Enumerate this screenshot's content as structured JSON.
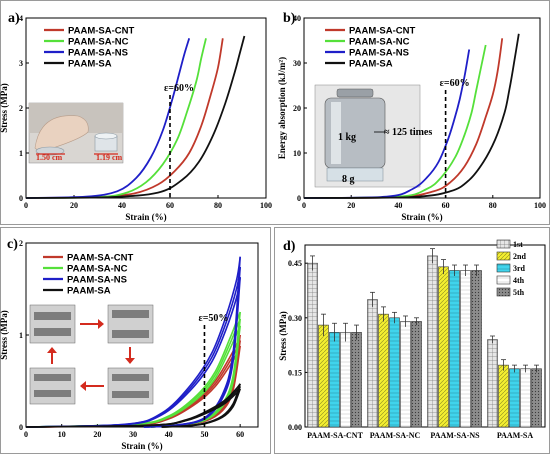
{
  "chart_data": [
    {
      "panel": "a)",
      "type": "line",
      "xlabel": "Strain (%)",
      "ylabel": "Stress (MPa)",
      "xlim": [
        0,
        100
      ],
      "ylim": [
        0,
        4
      ],
      "xticks": [
        "0",
        "20",
        "40",
        "60",
        "80",
        "100"
      ],
      "yticks": [
        "0",
        "1",
        "2",
        "3",
        "4"
      ],
      "annotation": "ε=60%",
      "annotation_x": 60,
      "legend_position": "top-left",
      "photo_labels": [
        "1.50 cm",
        "1.19 cm"
      ],
      "series": [
        {
          "name": "PAAM-SA-CNT",
          "color": "#c0392b",
          "points": [
            [
              0,
              0
            ],
            [
              30,
              0.02
            ],
            [
              45,
              0.1
            ],
            [
              55,
              0.3
            ],
            [
              62,
              0.6
            ],
            [
              68,
              1.0
            ],
            [
              73,
              1.6
            ],
            [
              77,
              2.3
            ],
            [
              80,
              2.9
            ],
            [
              82,
              3.55
            ]
          ]
        },
        {
          "name": "PAAM-SA-NC",
          "color": "#55e03a",
          "points": [
            [
              0,
              0
            ],
            [
              30,
              0.02
            ],
            [
              42,
              0.12
            ],
            [
              50,
              0.35
            ],
            [
              57,
              0.75
            ],
            [
              63,
              1.3
            ],
            [
              67,
              1.9
            ],
            [
              71,
              2.6
            ],
            [
              73,
              3.1
            ],
            [
              75,
              3.55
            ]
          ]
        },
        {
          "name": "PAAM-SA-NS",
          "color": "#1f1fc8",
          "points": [
            [
              0,
              0
            ],
            [
              25,
              0.03
            ],
            [
              38,
              0.15
            ],
            [
              46,
              0.45
            ],
            [
              52,
              0.9
            ],
            [
              57,
              1.5
            ],
            [
              61,
              2.2
            ],
            [
              64,
              2.8
            ],
            [
              66,
              3.2
            ],
            [
              68,
              3.55
            ]
          ]
        },
        {
          "name": "PAAM-SA",
          "color": "#111111",
          "points": [
            [
              0,
              0
            ],
            [
              35,
              0.02
            ],
            [
              55,
              0.12
            ],
            [
              65,
              0.4
            ],
            [
              72,
              0.8
            ],
            [
              78,
              1.4
            ],
            [
              83,
              2.1
            ],
            [
              87,
              2.8
            ],
            [
              89,
              3.2
            ],
            [
              91,
              3.6
            ]
          ]
        }
      ]
    },
    {
      "panel": "b)",
      "type": "line",
      "xlabel": "Strain (%)",
      "ylabel": "Energy absorption (kJ/m²)",
      "xlim": [
        0,
        100
      ],
      "ylim": [
        0,
        40
      ],
      "xticks": [
        "0",
        "20",
        "40",
        "60",
        "80",
        "100"
      ],
      "yticks": [
        "0",
        "10",
        "20",
        "30",
        "40"
      ],
      "annotation": "ε=60%",
      "annotation_x": 60,
      "legend_position": "top-left",
      "photo_labels": [
        "1 kg",
        "8 g",
        "≈ 125 times"
      ],
      "series": [
        {
          "name": "PAAM-SA-CNT",
          "color": "#c0392b",
          "points": [
            [
              0,
              0
            ],
            [
              40,
              0.2
            ],
            [
              55,
              1.5
            ],
            [
              62,
              3.5
            ],
            [
              68,
              7
            ],
            [
              73,
              12
            ],
            [
              77,
              18
            ],
            [
              80,
              23
            ],
            [
              82,
              28
            ],
            [
              84,
              35.5
            ]
          ]
        },
        {
          "name": "PAAM-SA-NC",
          "color": "#55e03a",
          "points": [
            [
              0,
              0
            ],
            [
              40,
              0.3
            ],
            [
              52,
              2
            ],
            [
              58,
              4.5
            ],
            [
              64,
              9
            ],
            [
              68,
              14
            ],
            [
              71,
              19
            ],
            [
              73,
              24
            ],
            [
              75,
              29
            ],
            [
              77,
              34
            ]
          ]
        },
        {
          "name": "PAAM-SA-NS",
          "color": "#1f1fc8",
          "points": [
            [
              0,
              0
            ],
            [
              35,
              0.3
            ],
            [
              46,
              2
            ],
            [
              52,
              4.5
            ],
            [
              57,
              8
            ],
            [
              61,
              13
            ],
            [
              64,
              18
            ],
            [
              66,
              22
            ],
            [
              68,
              27
            ],
            [
              70,
              33
            ]
          ]
        },
        {
          "name": "PAAM-SA",
          "color": "#111111",
          "points": [
            [
              0,
              0
            ],
            [
              45,
              0.2
            ],
            [
              62,
              1.5
            ],
            [
              70,
              4
            ],
            [
              76,
              8
            ],
            [
              81,
              13
            ],
            [
              85,
              19
            ],
            [
              87,
              24
            ],
            [
              89,
              30
            ],
            [
              91,
              36.5
            ]
          ]
        }
      ]
    },
    {
      "panel": "c)",
      "type": "line",
      "xlabel": "Strain (%)",
      "ylabel": "Stress (MPa)",
      "xlim": [
        0,
        65
      ],
      "ylim": [
        0,
        2
      ],
      "xticks": [
        "0",
        "10",
        "20",
        "30",
        "40",
        "50",
        "60"
      ],
      "yticks": [
        "0",
        "1",
        "2"
      ],
      "annotation": "ε=50%",
      "annotation_x": 50,
      "legend_position": "top-left",
      "series": [
        {
          "name": "PAAM-SA-CNT",
          "color": "#c0392b",
          "loading": [
            [
              0,
              0
            ],
            [
              30,
              0.02
            ],
            [
              40,
              0.1
            ],
            [
              48,
              0.3
            ],
            [
              53,
              0.5
            ],
            [
              57,
              0.75
            ],
            [
              59,
              0.9
            ],
            [
              60,
              1.0
            ]
          ],
          "unloading": [
            [
              60,
              1.0
            ],
            [
              58,
              0.45
            ],
            [
              55,
              0.2
            ],
            [
              50,
              0.07
            ],
            [
              42,
              0.02
            ],
            [
              35,
              0
            ]
          ]
        },
        {
          "name": "PAAM-SA-NC",
          "color": "#55e03a",
          "loading": [
            [
              0,
              0
            ],
            [
              30,
              0.03
            ],
            [
              40,
              0.12
            ],
            [
              48,
              0.35
            ],
            [
              53,
              0.6
            ],
            [
              57,
              0.95
            ],
            [
              59,
              1.15
            ],
            [
              60,
              1.25
            ]
          ],
          "unloading": [
            [
              60,
              1.25
            ],
            [
              58,
              0.55
            ],
            [
              55,
              0.25
            ],
            [
              50,
              0.08
            ],
            [
              42,
              0.02
            ],
            [
              35,
              0
            ]
          ]
        },
        {
          "name": "PAAM-SA-NS",
          "color": "#1f1fc8",
          "loading": [
            [
              0,
              0
            ],
            [
              28,
              0.03
            ],
            [
              38,
              0.15
            ],
            [
              46,
              0.45
            ],
            [
              52,
              0.8
            ],
            [
              56,
              1.2
            ],
            [
              59,
              1.6
            ],
            [
              60,
              1.85
            ]
          ],
          "unloading": [
            [
              60,
              1.85
            ],
            [
              58,
              0.8
            ],
            [
              55,
              0.35
            ],
            [
              50,
              0.1
            ],
            [
              42,
              0.02
            ],
            [
              33,
              0
            ]
          ]
        },
        {
          "name": "PAAM-SA",
          "color": "#111111",
          "loading": [
            [
              0,
              0
            ],
            [
              35,
              0.02
            ],
            [
              45,
              0.08
            ],
            [
              52,
              0.2
            ],
            [
              56,
              0.3
            ],
            [
              59,
              0.42
            ],
            [
              60,
              0.47
            ]
          ],
          "unloading": [
            [
              60,
              0.47
            ],
            [
              58,
              0.25
            ],
            [
              55,
              0.12
            ],
            [
              50,
              0.04
            ],
            [
              44,
              0.01
            ],
            [
              38,
              0
            ]
          ]
        }
      ]
    },
    {
      "panel": "d)",
      "type": "bar",
      "ylabel": "Stress (MPa)",
      "ylim": [
        0,
        0.5
      ],
      "yticks": [
        "0.00",
        "0.15",
        "0.30",
        "0.45"
      ],
      "legend_position": "top-right",
      "categories": [
        "PAAM-SA-CNT",
        "PAAM-SA-NC",
        "PAAM-SA-NS",
        "PAAM-SA"
      ],
      "series": [
        {
          "name": "1st",
          "color": "#bfbfbf",
          "values": [
            0.45,
            0.35,
            0.47,
            0.24
          ],
          "errors": [
            0.02,
            0.02,
            0.02,
            0.01
          ]
        },
        {
          "name": "2nd",
          "color": "#f2ec2a",
          "values": [
            0.28,
            0.31,
            0.44,
            0.17
          ],
          "errors": [
            0.03,
            0.02,
            0.02,
            0.015
          ]
        },
        {
          "name": "3rd",
          "color": "#3fd0e8",
          "values": [
            0.26,
            0.3,
            0.43,
            0.16
          ],
          "errors": [
            0.025,
            0.015,
            0.015,
            0.01
          ]
        },
        {
          "name": "4th",
          "color": "#ffffff",
          "values": [
            0.26,
            0.29,
            0.43,
            0.16
          ],
          "errors": [
            0.025,
            0.015,
            0.015,
            0.01
          ]
        },
        {
          "name": "5th",
          "color": "#9a9a9a",
          "values": [
            0.26,
            0.29,
            0.43,
            0.16
          ],
          "errors": [
            0.02,
            0.01,
            0.015,
            0.01
          ]
        }
      ]
    }
  ]
}
